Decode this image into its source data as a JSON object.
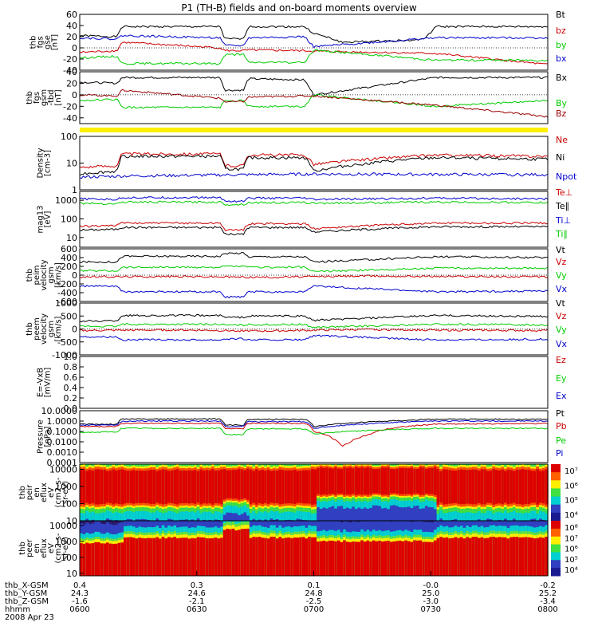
{
  "title": "P1 (TH-B) fields and on-board moments overview",
  "chart_data": [
    {
      "type": "line",
      "panel": "fgs_gse",
      "ylabel": [
        "thb",
        "fgs",
        "gse",
        "[nT]"
      ],
      "ylim": [
        -40,
        60
      ],
      "y_ticks": [
        "60",
        "40",
        "20",
        "0",
        "-20",
        "-40"
      ],
      "legend": [
        "Bt",
        "bz",
        "by",
        "bx"
      ],
      "series": [
        {
          "name": "Bt",
          "color": "#000000",
          "x": [
            0,
            0.08,
            0.09,
            0.3,
            0.31,
            0.35,
            0.36,
            0.48,
            0.5,
            0.54,
            0.56,
            0.72,
            0.74,
            0.76,
            1
          ],
          "y": [
            22,
            20,
            38,
            38,
            16,
            16,
            38,
            38,
            26,
            16,
            10,
            14,
            18,
            38,
            38
          ]
        },
        {
          "name": "bz",
          "color": "#cc0000",
          "x": [
            0,
            0.08,
            0.09,
            0.3,
            0.31,
            0.35,
            0.36,
            0.48,
            0.5,
            0.76,
            1
          ],
          "y": [
            -8,
            -5,
            10,
            0,
            -5,
            -5,
            -4,
            -5,
            -6,
            -10,
            -30
          ]
        },
        {
          "name": "by",
          "color": "#00cc00",
          "x": [
            0,
            0.08,
            0.09,
            0.3,
            0.31,
            0.35,
            0.36,
            0.48,
            0.5,
            0.76,
            1
          ],
          "y": [
            -18,
            -15,
            -28,
            -28,
            -12,
            -12,
            -26,
            -26,
            -4,
            -22,
            -22
          ]
        },
        {
          "name": "bx",
          "color": "#0000cc",
          "x": [
            0,
            0.08,
            0.09,
            0.3,
            0.31,
            0.35,
            0.36,
            0.48,
            0.5,
            0.76,
            1
          ],
          "y": [
            18,
            16,
            22,
            18,
            4,
            4,
            18,
            20,
            2,
            18,
            18
          ]
        }
      ]
    },
    {
      "type": "line",
      "panel": "fgs_gsm",
      "ylabel": [
        "thb",
        "fgs",
        "gsm",
        "-tbd",
        "[nT]"
      ],
      "ylim": [
        -50,
        40
      ],
      "y_ticks": [
        "40",
        "20",
        "0",
        "-20",
        "-40"
      ],
      "legend": [
        "Bx",
        "By",
        "Bz"
      ],
      "series": [
        {
          "name": "Bx",
          "color": "#000000",
          "x": [
            0,
            0.08,
            0.09,
            0.3,
            0.31,
            0.35,
            0.36,
            0.48,
            0.5,
            0.76,
            1
          ],
          "y": [
            22,
            20,
            30,
            30,
            8,
            8,
            28,
            26,
            0,
            30,
            30
          ]
        },
        {
          "name": "By",
          "color": "#00cc00",
          "x": [
            0,
            0.08,
            0.09,
            0.3,
            0.31,
            0.35,
            0.36,
            0.48,
            0.5,
            0.76,
            1
          ],
          "y": [
            -10,
            -8,
            -22,
            -22,
            -10,
            -10,
            -20,
            -20,
            0,
            -20,
            -10
          ]
        },
        {
          "name": "Bz",
          "color": "#990000",
          "x": [
            0,
            0.08,
            0.09,
            0.3,
            0.31,
            0.35,
            0.36,
            0.48,
            0.5,
            0.76,
            1
          ],
          "y": [
            0,
            -2,
            8,
            -6,
            -12,
            -12,
            -4,
            -2,
            -2,
            -18,
            -38
          ]
        }
      ]
    },
    {
      "type": "line",
      "panel": "density",
      "ylabel": [
        "Density",
        "[cm-3]"
      ],
      "log": true,
      "ylim": [
        1,
        100
      ],
      "y_ticks": [
        "100",
        "10",
        "1"
      ],
      "legend": [
        "Ne",
        "Ni",
        "Npot"
      ],
      "series": [
        {
          "name": "Ne",
          "color": "#cc0000",
          "x": [
            0,
            0.08,
            0.09,
            0.3,
            0.31,
            0.35,
            0.36,
            0.48,
            0.5,
            0.76,
            1
          ],
          "y": [
            7,
            8,
            22,
            22,
            8,
            8,
            20,
            20,
            9,
            20,
            18
          ]
        },
        {
          "name": "Ni",
          "color": "#000000",
          "x": [
            0,
            0.08,
            0.09,
            0.3,
            0.31,
            0.35,
            0.36,
            0.48,
            0.5,
            0.76,
            1
          ],
          "y": [
            4,
            5,
            18,
            18,
            6,
            6,
            16,
            16,
            5,
            16,
            14
          ]
        },
        {
          "name": "Npot",
          "color": "#0000cc",
          "x": [
            0,
            0.1,
            0.3,
            0.5,
            0.7,
            1
          ],
          "y": [
            3,
            3.3,
            3.6,
            3.9,
            3.8,
            3.7
          ]
        }
      ]
    },
    {
      "type": "line",
      "panel": "temperature",
      "ylabel": [
        "mag13",
        "[eV]"
      ],
      "log": true,
      "ylim": [
        3,
        3000
      ],
      "y_ticks": [
        "1000",
        "100",
        "10"
      ],
      "legend": [
        "Te⊥",
        "Te∥",
        "Ti⊥",
        "Ti∥"
      ],
      "series": [
        {
          "name": "Te⊥",
          "color": "#cc0000",
          "x": [
            0,
            0.08,
            0.09,
            0.3,
            0.31,
            0.35,
            0.36,
            0.48,
            0.5,
            0.76,
            1
          ],
          "y": [
            40,
            45,
            60,
            60,
            25,
            25,
            55,
            55,
            30,
            60,
            60
          ]
        },
        {
          "name": "Te∥",
          "color": "#000000",
          "x": [
            0,
            0.08,
            0.09,
            0.3,
            0.31,
            0.35,
            0.36,
            0.48,
            0.5,
            0.76,
            1
          ],
          "y": [
            25,
            28,
            35,
            35,
            15,
            15,
            35,
            35,
            20,
            38,
            38
          ]
        },
        {
          "name": "Ti⊥",
          "color": "#0000cc",
          "x": [
            0,
            0.08,
            0.09,
            0.3,
            0.31,
            0.35,
            0.36,
            0.48,
            0.5,
            0.76,
            1
          ],
          "y": [
            1200,
            1100,
            1400,
            1400,
            900,
            900,
            1300,
            1300,
            1100,
            1300,
            1200
          ]
        },
        {
          "name": "Ti∥",
          "color": "#00cc00",
          "x": [
            0,
            0.08,
            0.09,
            0.3,
            0.31,
            0.35,
            0.36,
            0.48,
            0.5,
            0.76,
            1
          ],
          "y": [
            700,
            650,
            800,
            800,
            600,
            600,
            750,
            750,
            700,
            800,
            750
          ]
        }
      ]
    },
    {
      "type": "line",
      "panel": "peim_velocity",
      "ylabel": [
        "thb",
        "peim",
        "velocity",
        "gsm",
        "[km/s]"
      ],
      "ylim": [
        -600,
        600
      ],
      "y_ticks": [
        "600",
        "400",
        "200",
        "0",
        "-200",
        "-400",
        "-600"
      ],
      "legend": [
        "Vt",
        "Vz",
        "Vy",
        "Vx"
      ],
      "series": [
        {
          "name": "Vt",
          "color": "#000000",
          "x": [
            0,
            0.08,
            0.09,
            0.3,
            0.31,
            0.35,
            0.36,
            0.48,
            0.5,
            0.76,
            1
          ],
          "y": [
            300,
            300,
            430,
            430,
            500,
            500,
            420,
            420,
            300,
            420,
            400
          ]
        },
        {
          "name": "Vz",
          "color": "#cc0000",
          "x": [
            0,
            0.2,
            0.4,
            0.6,
            0.8,
            1
          ],
          "y": [
            -40,
            -30,
            -50,
            -20,
            -30,
            -40
          ]
        },
        {
          "name": "Vy",
          "color": "#00cc00",
          "x": [
            0,
            0.08,
            0.09,
            0.3,
            0.31,
            0.35,
            0.36,
            0.48,
            0.5,
            0.76,
            1
          ],
          "y": [
            100,
            100,
            180,
            180,
            200,
            200,
            180,
            180,
            80,
            160,
            160
          ]
        },
        {
          "name": "Vx",
          "color": "#0000cc",
          "x": [
            0,
            0.08,
            0.09,
            0.3,
            0.31,
            0.35,
            0.36,
            0.48,
            0.5,
            0.76,
            1
          ],
          "y": [
            -250,
            -250,
            -380,
            -380,
            -500,
            -500,
            -380,
            -380,
            -250,
            -380,
            -360
          ]
        }
      ]
    },
    {
      "type": "line",
      "panel": "peem_velocity",
      "ylabel": [
        "thb",
        "peem",
        "velocity",
        "gsm",
        "[km/s]"
      ],
      "ylim": [
        -1000,
        1000
      ],
      "y_ticks": [
        "1000",
        "500",
        "0",
        "-500",
        "-1000"
      ],
      "legend": [
        "Vt",
        "Vz",
        "Vy",
        "Vx"
      ],
      "series": [
        {
          "name": "Vt",
          "color": "#000000",
          "x": [
            0,
            0.08,
            0.09,
            0.3,
            0.31,
            0.35,
            0.36,
            0.48,
            0.5,
            0.76,
            1
          ],
          "y": [
            300,
            320,
            520,
            520,
            450,
            450,
            500,
            500,
            330,
            520,
            480
          ]
        },
        {
          "name": "Vz",
          "color": "#cc0000",
          "x": [
            0,
            0.2,
            0.4,
            0.6,
            0.8,
            1
          ],
          "y": [
            -60,
            -40,
            -80,
            -20,
            -50,
            -60
          ]
        },
        {
          "name": "Vy",
          "color": "#00cc00",
          "x": [
            0,
            0.08,
            0.09,
            0.3,
            0.31,
            0.35,
            0.36,
            0.48,
            0.5,
            0.76,
            1
          ],
          "y": [
            100,
            100,
            180,
            180,
            150,
            150,
            170,
            170,
            60,
            180,
            160
          ]
        },
        {
          "name": "Vx",
          "color": "#0000cc",
          "x": [
            0,
            0.08,
            0.09,
            0.3,
            0.31,
            0.35,
            0.36,
            0.48,
            0.5,
            0.76,
            1
          ],
          "y": [
            -300,
            -300,
            -420,
            -420,
            -380,
            -380,
            -420,
            -420,
            -260,
            -420,
            -400
          ]
        }
      ]
    },
    {
      "type": "line",
      "panel": "efield",
      "ylabel": [
        "E=-VxB",
        "[mV/m]"
      ],
      "ylim": [
        0,
        1
      ],
      "y_ticks": [
        "1.0",
        "0.8",
        "0.6",
        "0.4",
        "0.2",
        "0.0"
      ],
      "legend": [
        "Ez",
        "Ey",
        "Ex"
      ],
      "series": []
    },
    {
      "type": "line",
      "panel": "pressure",
      "ylabel": [
        "Pressure",
        "[nPa]"
      ],
      "log": true,
      "ylim": [
        0.0001,
        10
      ],
      "y_ticks": [
        "10.0000",
        "1.0000",
        "0.1000",
        "0.0100",
        "0.0010",
        "0.0001"
      ],
      "legend": [
        "Pt",
        "Pb",
        "Pe",
        "Pi"
      ],
      "series": [
        {
          "name": "Pt",
          "color": "#000000",
          "x": [
            0,
            0.08,
            0.09,
            0.3,
            0.31,
            0.35,
            0.36,
            0.48,
            0.5,
            0.76,
            1
          ],
          "y": [
            0.5,
            0.5,
            1.6,
            1.6,
            0.4,
            0.4,
            1.5,
            1.5,
            0.3,
            1.5,
            1.5
          ]
        },
        {
          "name": "Pb",
          "color": "#cc0000",
          "x": [
            0,
            0.08,
            0.09,
            0.3,
            0.31,
            0.35,
            0.36,
            0.48,
            0.5,
            0.54,
            0.56,
            0.58,
            0.62,
            0.76,
            1
          ],
          "y": [
            0.3,
            0.3,
            0.6,
            0.6,
            0.2,
            0.2,
            0.6,
            0.6,
            0.1,
            0.02,
            0.003,
            0.01,
            0.05,
            0.5,
            0.6
          ]
        },
        {
          "name": "Pe",
          "color": "#00cc00",
          "x": [
            0,
            0.08,
            0.09,
            0.3,
            0.31,
            0.35,
            0.36,
            0.48,
            0.5,
            0.76,
            1
          ],
          "y": [
            0.08,
            0.09,
            0.2,
            0.2,
            0.05,
            0.05,
            0.18,
            0.18,
            0.06,
            0.2,
            0.2
          ]
        },
        {
          "name": "Pi",
          "color": "#0000cc",
          "x": [
            0,
            0.08,
            0.09,
            0.3,
            0.31,
            0.35,
            0.36,
            0.48,
            0.5,
            0.76,
            1
          ],
          "y": [
            0.4,
            0.4,
            1.0,
            1.0,
            0.3,
            0.3,
            0.9,
            0.9,
            0.2,
            1.0,
            1.0
          ]
        }
      ]
    },
    {
      "type": "heatmap",
      "panel": "peir_spectrogram",
      "ylabel": [
        "thb",
        "peir",
        "en",
        "eflux",
        "eV",
        "(cm2-s-",
        "sr-eV)"
      ],
      "log": true,
      "ylim": [
        10,
        20000
      ],
      "y_ticks": [
        "10000",
        "1000",
        "100",
        "10"
      ],
      "colorbar_ticks": [
        "10⁷",
        "10⁶",
        "10⁵",
        "10⁴"
      ]
    },
    {
      "type": "heatmap",
      "panel": "peer_spectrogram",
      "ylabel": [
        "thb",
        "peer",
        "en",
        "eflux",
        "eV",
        "(cm2-s-",
        "sr-eV)"
      ],
      "log": true,
      "ylim": [
        7,
        20000
      ],
      "y_ticks": [
        "10000",
        "1000",
        "100",
        "10"
      ],
      "colorbar_ticks": [
        "10⁸",
        "10⁷",
        "10⁶",
        "10⁵",
        "10⁴"
      ]
    }
  ],
  "x_axis": {
    "rows": [
      {
        "label": "thb_X-GSM",
        "values": [
          "0.4",
          "0.3",
          "0.1",
          "-0.0",
          "-0.2"
        ]
      },
      {
        "label": "thb_Y-GSM",
        "values": [
          "24.3",
          "24.6",
          "24.8",
          "25.0",
          "25.2"
        ]
      },
      {
        "label": "thb_Z-GSM",
        "values": [
          "-1.6",
          "-2.1",
          "-2.5",
          "-3.0",
          "-3.4"
        ]
      },
      {
        "label": "hhmm",
        "values": [
          "0600",
          "0630",
          "0700",
          "0730",
          "0800"
        ]
      }
    ],
    "date": "2008 Apr 23"
  }
}
